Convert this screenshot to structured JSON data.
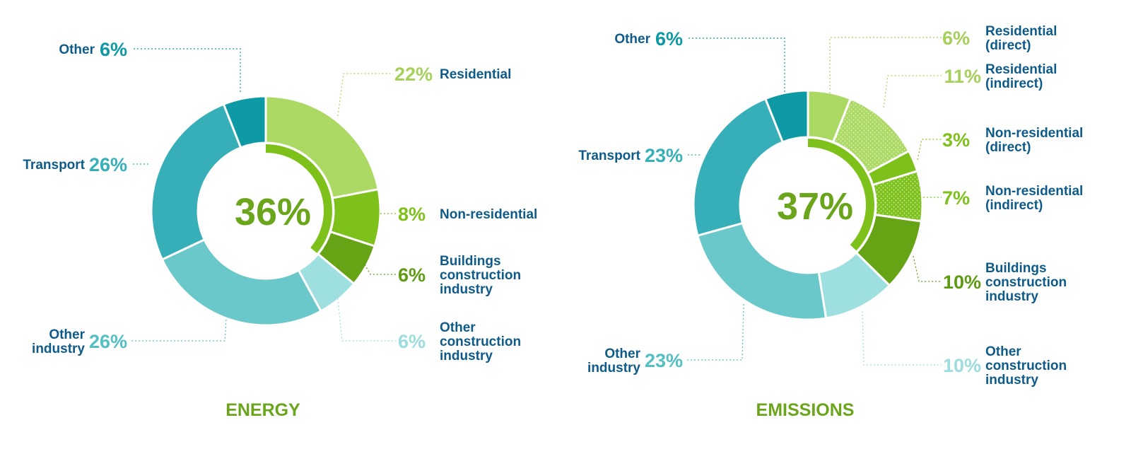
{
  "colors": {
    "label": "#0e5b8a",
    "accent": "#6aa51c",
    "inner_ring": "#7dc11a",
    "inner_ring_track": "#ffffff"
  },
  "chart_data": [
    {
      "type": "pie",
      "title": "ENERGY",
      "center_label": "36%",
      "inner_ring_value": 36,
      "slices": [
        {
          "key": "residential",
          "label_lines": [
            "Residential"
          ],
          "percent_label": "22%",
          "value": 22,
          "color": "#acd864",
          "pattern": "none",
          "pct_color": "#a5d05a"
        },
        {
          "key": "non-residential",
          "label_lines": [
            "Non-residential"
          ],
          "percent_label": "8%",
          "value": 8,
          "color": "#7dc11a",
          "pattern": "none",
          "pct_color": "#7dc11a"
        },
        {
          "key": "buildings-construction",
          "label_lines": [
            "Buildings",
            "construction",
            "industry"
          ],
          "percent_label": "6%",
          "value": 6,
          "color": "#66a416",
          "pattern": "none",
          "pct_color": "#5e9b12"
        },
        {
          "key": "other-construction",
          "label_lines": [
            "Other",
            "construction",
            "industry"
          ],
          "percent_label": "6%",
          "value": 6,
          "color": "#9edfe0",
          "pattern": "none",
          "pct_color": "#9ddcdf"
        },
        {
          "key": "other-industry",
          "label_lines": [
            "Other",
            "industry"
          ],
          "percent_label": "26%",
          "value": 26,
          "color": "#6ac8cb",
          "pattern": "none",
          "pct_color": "#52bfc3"
        },
        {
          "key": "transport",
          "label_lines": [
            "Transport"
          ],
          "percent_label": "26%",
          "value": 26,
          "color": "#36afb8",
          "pattern": "none",
          "pct_color": "#36afb8"
        },
        {
          "key": "other",
          "label_lines": [
            "Other"
          ],
          "percent_label": "6%",
          "value": 6,
          "color": "#0d9aa4",
          "pattern": "none",
          "pct_color": "#0d9aa4"
        }
      ]
    },
    {
      "type": "pie",
      "title": "EMISSIONS",
      "center_label": "37%",
      "inner_ring_value": 37,
      "slices": [
        {
          "key": "residential-direct",
          "label_lines": [
            "Residential",
            "(direct)"
          ],
          "percent_label": "6%",
          "value": 6,
          "color": "#acd864",
          "pattern": "none",
          "pct_color": "#a5d05a"
        },
        {
          "key": "residential-indirect",
          "label_lines": [
            "Residential",
            "(indirect)"
          ],
          "percent_label": "11%",
          "value": 11,
          "color": "#acd864",
          "pattern": "dots",
          "pct_color": "#a5d05a"
        },
        {
          "key": "non-residential-direct",
          "label_lines": [
            "Non-residential",
            "(direct)"
          ],
          "percent_label": "3%",
          "value": 3,
          "color": "#7dc11a",
          "pattern": "none",
          "pct_color": "#7dc11a"
        },
        {
          "key": "non-residential-indirect",
          "label_lines": [
            "Non-residential",
            "(indirect)"
          ],
          "percent_label": "7%",
          "value": 7,
          "color": "#7dc11a",
          "pattern": "dots",
          "pct_color": "#7dc11a"
        },
        {
          "key": "buildings-construction",
          "label_lines": [
            "Buildings",
            "construction",
            "industry"
          ],
          "percent_label": "10%",
          "value": 10,
          "color": "#66a416",
          "pattern": "none",
          "pct_color": "#5e9b12"
        },
        {
          "key": "other-construction",
          "label_lines": [
            "Other",
            "construction",
            "industry"
          ],
          "percent_label": "10%",
          "value": 10,
          "color": "#9edfe0",
          "pattern": "none",
          "pct_color": "#9ddcdf"
        },
        {
          "key": "other-industry",
          "label_lines": [
            "Other",
            "industry"
          ],
          "percent_label": "23%",
          "value": 23,
          "color": "#6ac8cb",
          "pattern": "none",
          "pct_color": "#52bfc3"
        },
        {
          "key": "transport",
          "label_lines": [
            "Transport"
          ],
          "percent_label": "23%",
          "value": 23,
          "color": "#36afb8",
          "pattern": "none",
          "pct_color": "#36afb8"
        },
        {
          "key": "other",
          "label_lines": [
            "Other"
          ],
          "percent_label": "6%",
          "value": 6,
          "color": "#0d9aa4",
          "pattern": "none",
          "pct_color": "#0d9aa4"
        }
      ]
    }
  ]
}
